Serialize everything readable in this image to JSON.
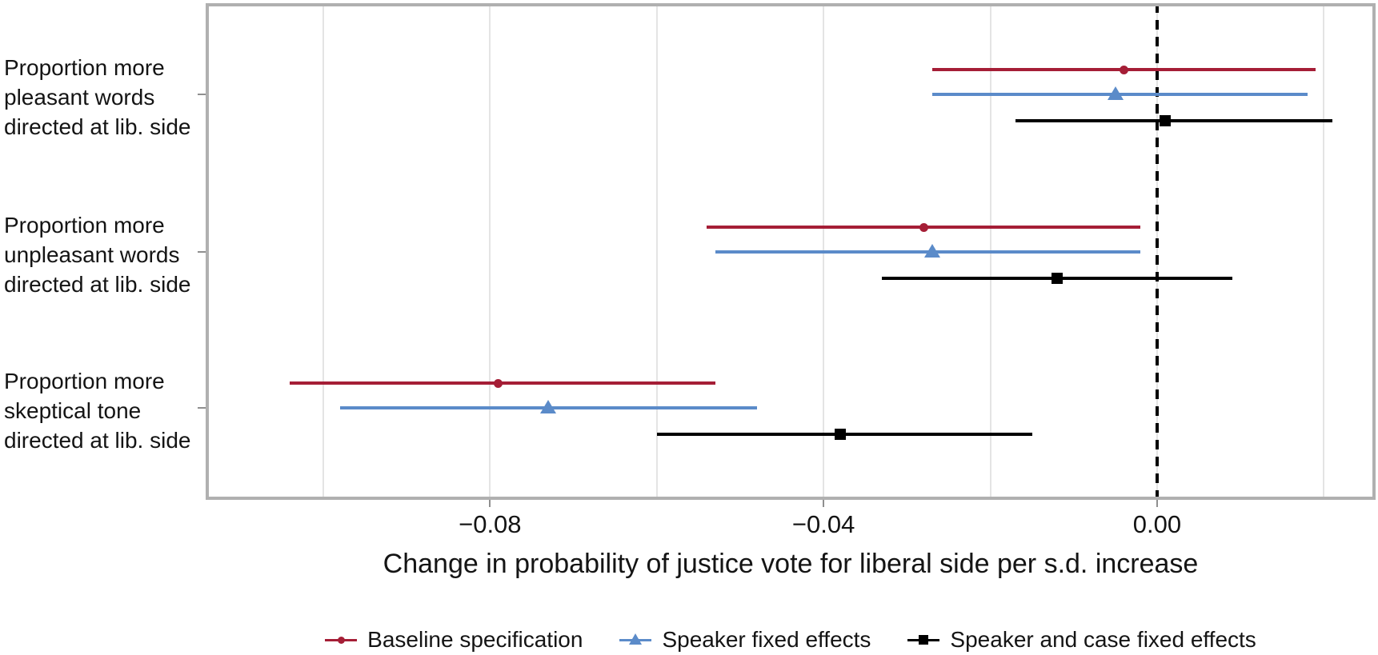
{
  "chart_data": {
    "type": "scatter",
    "subtype": "coefficient-dot-whisker-plot",
    "title": "",
    "xlabel": "Change in probability of justice vote for liberal side per s.d. increase",
    "ylabel": "",
    "xlim": [
      -0.1141,
      0.0262
    ],
    "grid": "vertical-only",
    "grid_x": [
      -0.1,
      -0.08,
      -0.06,
      -0.04,
      -0.02,
      0.0,
      0.02
    ],
    "x_ticks": [
      {
        "value": -0.08,
        "label": "−0.08"
      },
      {
        "value": -0.04,
        "label": "−0.04"
      },
      {
        "value": 0.0,
        "label": "0.00"
      }
    ],
    "reference_line_x": 0.0,
    "legend_position": "bottom",
    "categories": [
      {
        "label_lines": [
          "Proportion more",
          "pleasant words",
          "directed at lib. side"
        ]
      },
      {
        "label_lines": [
          "Proportion more",
          "unpleasant words",
          "directed at lib. side"
        ]
      },
      {
        "label_lines": [
          "Proportion more",
          "skeptical tone",
          "directed at lib. side"
        ]
      }
    ],
    "series": [
      {
        "name": "Baseline specification",
        "marker": "circle",
        "color": "#A51E36",
        "points": [
          {
            "estimate": -0.004,
            "ci_low": -0.027,
            "ci_high": 0.019
          },
          {
            "estimate": -0.028,
            "ci_low": -0.054,
            "ci_high": -0.002
          },
          {
            "estimate": -0.079,
            "ci_low": -0.104,
            "ci_high": -0.053
          }
        ]
      },
      {
        "name": "Speaker fixed effects",
        "marker": "triangle",
        "color": "#5B8BC9",
        "points": [
          {
            "estimate": -0.005,
            "ci_low": -0.027,
            "ci_high": 0.018
          },
          {
            "estimate": -0.027,
            "ci_low": -0.053,
            "ci_high": -0.002
          },
          {
            "estimate": -0.073,
            "ci_low": -0.098,
            "ci_high": -0.048
          }
        ]
      },
      {
        "name": "Speaker and case fixed effects",
        "marker": "square",
        "color": "#000000",
        "points": [
          {
            "estimate": 0.001,
            "ci_low": -0.017,
            "ci_high": 0.021
          },
          {
            "estimate": -0.012,
            "ci_low": -0.033,
            "ci_high": 0.009
          },
          {
            "estimate": -0.038,
            "ci_low": -0.06,
            "ci_high": -0.015
          }
        ]
      }
    ],
    "colors": {
      "reference_line": "#000000",
      "gridline": "#e4e4e4",
      "panel_border": "#b0b0b0",
      "text": "#141414"
    }
  }
}
